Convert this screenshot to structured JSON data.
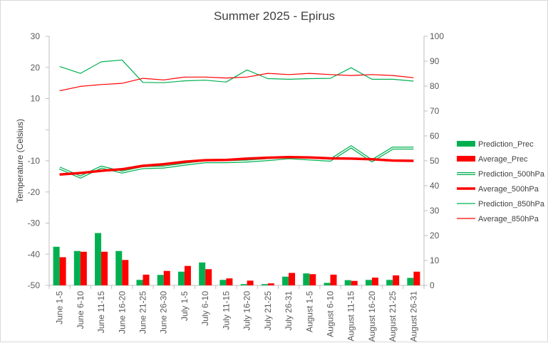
{
  "chart_data": {
    "type": "combo",
    "title": "Summer 2025 - Epirus",
    "ylabel": "Temperature  (Celsius)",
    "y2label": "",
    "ylim": [
      -50,
      30
    ],
    "y2lim": [
      0,
      100
    ],
    "yticks": [
      30,
      20,
      10,
      "",
      -10,
      -20,
      -30,
      -40,
      -50
    ],
    "y2ticks": [
      100,
      90,
      80,
      70,
      60,
      50,
      40,
      30,
      20,
      10,
      0
    ],
    "grid": false,
    "legend_position": "right",
    "categories": [
      "June 1-5",
      "June 6-10",
      "June 11-15",
      "June 16-20",
      "June 21-25",
      "June 26-30",
      "July 1-5",
      "July 6-10",
      "July 11-15",
      "July 16-20",
      "July 21-25",
      "July 26-31",
      "August 1-5",
      "August 6-10",
      "August 11-15",
      "August 16-20",
      "August 21-25",
      "August 26-31"
    ],
    "series": [
      {
        "name": "Prediction_Prec",
        "type": "bar",
        "axis": "secondary",
        "color": "#00b050",
        "values": [
          15.5,
          13.8,
          21,
          13.8,
          2.2,
          4.2,
          5.5,
          9.2,
          2.2,
          0.5,
          0.5,
          3.5,
          4.8,
          1,
          2.1,
          2.2,
          2.2,
          3
        ]
      },
      {
        "name": "Average_Prec",
        "type": "bar",
        "axis": "secondary",
        "color": "#ff0000",
        "values": [
          11.3,
          13.5,
          13.5,
          10.2,
          4.3,
          5.8,
          7.8,
          6.5,
          2.8,
          1.9,
          0.8,
          5,
          4.5,
          4.3,
          1.8,
          3.1,
          4,
          5.5
        ]
      },
      {
        "name": "Prediction_500hPa",
        "type": "line",
        "axis": "primary",
        "color": "#00b050",
        "style": "double",
        "values": [
          -12.3,
          -15.2,
          -12,
          -13.6,
          -12.2,
          -12,
          -11.1,
          -10.3,
          -10.3,
          -10.1,
          -9.6,
          -9.0,
          -9.4,
          -9.8,
          -5.5,
          -10.0,
          -5.9,
          -5.9
        ]
      },
      {
        "name": "Average_500hPa",
        "type": "line",
        "axis": "primary",
        "color": "#ff0000",
        "style": "thick",
        "values": [
          -14.4,
          -13.9,
          -13.2,
          -12.7,
          -11.6,
          -11.1,
          -10.3,
          -9.8,
          -9.7,
          -9.3,
          -9.0,
          -8.8,
          -8.9,
          -9.2,
          -9.3,
          -9.5,
          -9.9,
          -10
        ]
      },
      {
        "name": "Prediction_850hPa",
        "type": "line",
        "axis": "primary",
        "color": "#00b050",
        "style": "thin",
        "values": [
          20.3,
          18.1,
          21.8,
          22.4,
          15.2,
          15.1,
          15.7,
          15.9,
          15.3,
          19.2,
          16.4,
          16.2,
          16.4,
          16.5,
          19.9,
          16.2,
          16.2,
          15.6
        ]
      },
      {
        "name": "Average_850hPa",
        "type": "line",
        "axis": "primary",
        "color": "#ff0000",
        "style": "thin",
        "values": [
          12.5,
          13.9,
          14.5,
          14.9,
          16.5,
          16.0,
          16.9,
          16.9,
          16.6,
          16.9,
          18.1,
          17.7,
          18.1,
          17.7,
          17.4,
          17.7,
          17.4,
          16.7
        ]
      }
    ]
  }
}
